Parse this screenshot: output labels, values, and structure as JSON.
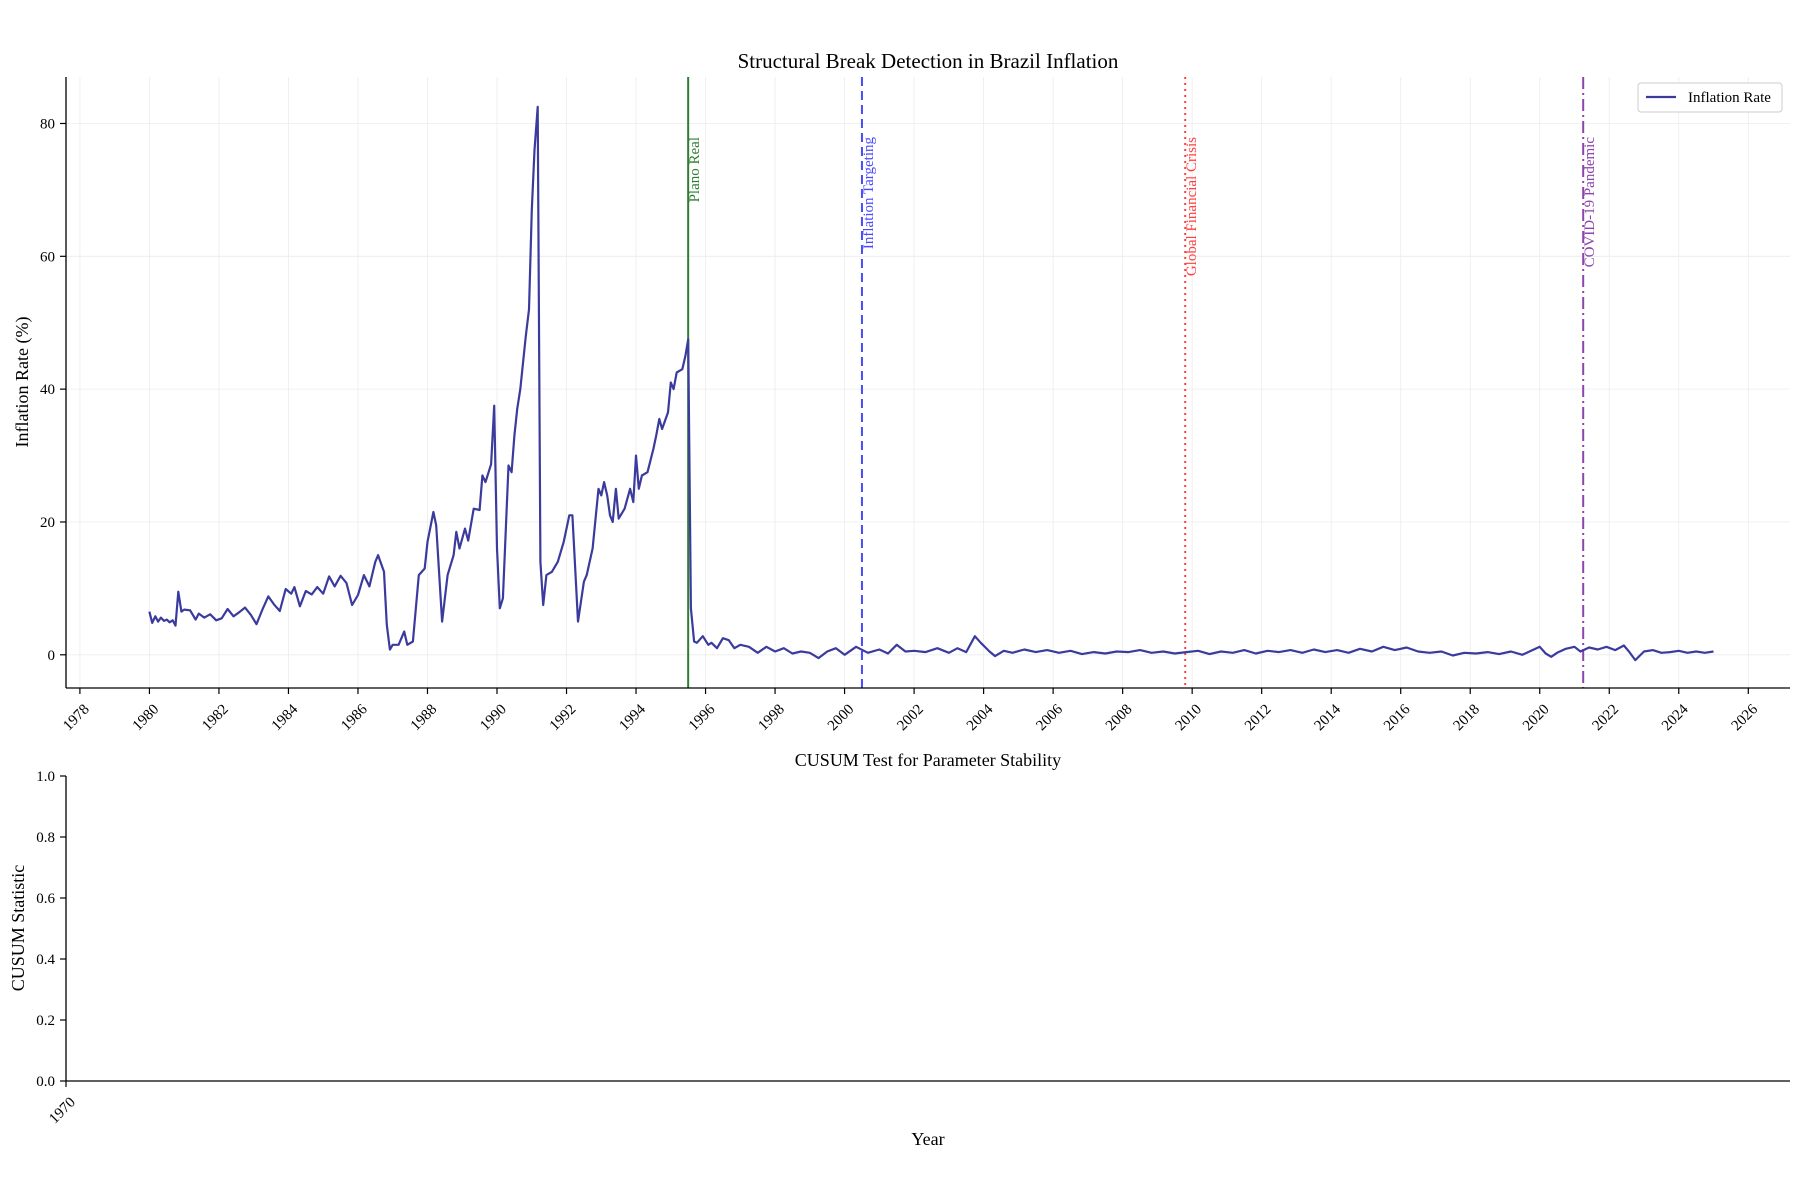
{
  "chart_data": [
    {
      "type": "line",
      "title": "Structural Break Detection in Brazil Inflation",
      "xlabel": "",
      "ylabel": "Inflation Rate (%)",
      "xlim": [
        1977.6,
        2027.2
      ],
      "ylim": [
        -5,
        87
      ],
      "yticks": [
        0,
        20,
        40,
        60,
        80
      ],
      "xticks": [
        1978,
        1980,
        1982,
        1984,
        1986,
        1988,
        1990,
        1992,
        1994,
        1996,
        1998,
        2000,
        2002,
        2004,
        2006,
        2008,
        2010,
        2012,
        2014,
        2016,
        2018,
        2020,
        2022,
        2024,
        2026
      ],
      "grid": true,
      "legend": "top-right",
      "series": [
        {
          "name": "Inflation Rate",
          "color": "#3b3b9e",
          "points": [
            [
              1980.0,
              6.5
            ],
            [
              1980.08,
              4.8
            ],
            [
              1980.17,
              5.8
            ],
            [
              1980.25,
              5.0
            ],
            [
              1980.33,
              5.6
            ],
            [
              1980.42,
              5.1
            ],
            [
              1980.5,
              5.3
            ],
            [
              1980.58,
              4.9
            ],
            [
              1980.67,
              5.2
            ],
            [
              1980.75,
              4.4
            ],
            [
              1980.83,
              9.5
            ],
            [
              1980.92,
              6.5
            ],
            [
              1981.0,
              6.8
            ],
            [
              1981.17,
              6.7
            ],
            [
              1981.33,
              5.3
            ],
            [
              1981.42,
              6.2
            ],
            [
              1981.58,
              5.6
            ],
            [
              1981.75,
              6.1
            ],
            [
              1981.92,
              5.2
            ],
            [
              1982.08,
              5.5
            ],
            [
              1982.25,
              6.9
            ],
            [
              1982.42,
              5.8
            ],
            [
              1982.58,
              6.4
            ],
            [
              1982.75,
              7.1
            ],
            [
              1982.92,
              6.0
            ],
            [
              1983.08,
              4.6
            ],
            [
              1983.25,
              6.8
            ],
            [
              1983.42,
              8.8
            ],
            [
              1983.58,
              7.6
            ],
            [
              1983.75,
              6.6
            ],
            [
              1983.92,
              9.9
            ],
            [
              1984.08,
              9.2
            ],
            [
              1984.17,
              10.2
            ],
            [
              1984.33,
              7.3
            ],
            [
              1984.5,
              9.6
            ],
            [
              1984.67,
              9.1
            ],
            [
              1984.83,
              10.2
            ],
            [
              1985.0,
              9.2
            ],
            [
              1985.17,
              11.8
            ],
            [
              1985.33,
              10.3
            ],
            [
              1985.5,
              11.9
            ],
            [
              1985.67,
              10.8
            ],
            [
              1985.83,
              7.5
            ],
            [
              1986.0,
              9.0
            ],
            [
              1986.17,
              12.0
            ],
            [
              1986.33,
              10.3
            ],
            [
              1986.5,
              14.0
            ],
            [
              1986.58,
              15.0
            ],
            [
              1986.75,
              12.5
            ],
            [
              1986.83,
              4.5
            ],
            [
              1986.92,
              0.8
            ],
            [
              1987.0,
              1.5
            ],
            [
              1987.17,
              1.5
            ],
            [
              1987.33,
              3.5
            ],
            [
              1987.42,
              1.5
            ],
            [
              1987.58,
              2.0
            ],
            [
              1987.75,
              12.0
            ],
            [
              1987.92,
              13.0
            ],
            [
              1988.0,
              17.0
            ],
            [
              1988.17,
              21.5
            ],
            [
              1988.25,
              19.5
            ],
            [
              1988.42,
              5.0
            ],
            [
              1988.58,
              12.0
            ],
            [
              1988.75,
              15.0
            ],
            [
              1988.83,
              18.5
            ],
            [
              1988.92,
              16.0
            ],
            [
              1989.08,
              19.0
            ],
            [
              1989.17,
              17.2
            ],
            [
              1989.33,
              22.0
            ],
            [
              1989.5,
              21.8
            ],
            [
              1989.58,
              27.0
            ],
            [
              1989.67,
              26.0
            ],
            [
              1989.83,
              28.7
            ],
            [
              1989.92,
              37.5
            ],
            [
              1990.0,
              16.0
            ],
            [
              1990.08,
              7.0
            ],
            [
              1990.17,
              8.5
            ],
            [
              1990.33,
              28.5
            ],
            [
              1990.42,
              27.5
            ],
            [
              1990.5,
              33.0
            ],
            [
              1990.58,
              37.0
            ],
            [
              1990.67,
              40.0
            ],
            [
              1990.83,
              48.0
            ],
            [
              1990.92,
              52.0
            ],
            [
              1991.0,
              67.0
            ],
            [
              1991.08,
              76.0
            ],
            [
              1991.17,
              82.5
            ],
            [
              1991.25,
              14.0
            ],
            [
              1991.33,
              7.5
            ],
            [
              1991.42,
              12.0
            ],
            [
              1991.58,
              12.5
            ],
            [
              1991.75,
              14.0
            ],
            [
              1991.92,
              17.0
            ],
            [
              1992.08,
              21.0
            ],
            [
              1992.17,
              21.0
            ],
            [
              1992.33,
              5.0
            ],
            [
              1992.5,
              11.0
            ],
            [
              1992.58,
              12.0
            ],
            [
              1992.75,
              16.0
            ],
            [
              1992.92,
              25.0
            ],
            [
              1993.0,
              24.0
            ],
            [
              1993.08,
              26.0
            ],
            [
              1993.17,
              24.0
            ],
            [
              1993.25,
              21.0
            ],
            [
              1993.33,
              20.0
            ],
            [
              1993.42,
              25.0
            ],
            [
              1993.5,
              20.5
            ],
            [
              1993.67,
              22.0
            ],
            [
              1993.83,
              25.0
            ],
            [
              1993.92,
              23.0
            ],
            [
              1994.0,
              30.0
            ],
            [
              1994.08,
              25.0
            ],
            [
              1994.17,
              27.0
            ],
            [
              1994.33,
              27.5
            ],
            [
              1994.5,
              31.0
            ],
            [
              1994.58,
              33.0
            ],
            [
              1994.67,
              35.5
            ],
            [
              1994.75,
              34.0
            ],
            [
              1994.92,
              36.5
            ],
            [
              1995.0,
              41.0
            ],
            [
              1995.08,
              40.0
            ],
            [
              1995.17,
              42.5
            ],
            [
              1995.33,
              43.0
            ],
            [
              1995.42,
              45.0
            ],
            [
              1995.5,
              47.5
            ],
            [
              1995.58,
              7.0
            ],
            [
              1995.67,
              2.0
            ],
            [
              1995.75,
              1.8
            ],
            [
              1995.92,
              2.8
            ],
            [
              1996.08,
              1.5
            ],
            [
              1996.17,
              1.8
            ],
            [
              1996.33,
              1.0
            ],
            [
              1996.5,
              2.5
            ],
            [
              1996.67,
              2.2
            ],
            [
              1996.83,
              1.0
            ],
            [
              1997.0,
              1.5
            ],
            [
              1997.25,
              1.2
            ],
            [
              1997.5,
              0.3
            ],
            [
              1997.75,
              1.2
            ],
            [
              1998.0,
              0.5
            ],
            [
              1998.25,
              1.0
            ],
            [
              1998.5,
              0.2
            ],
            [
              1998.75,
              0.5
            ],
            [
              1999.0,
              0.3
            ],
            [
              1999.25,
              -0.5
            ],
            [
              1999.5,
              0.5
            ],
            [
              1999.75,
              1.0
            ],
            [
              2000.0,
              0.0
            ],
            [
              2000.33,
              1.2
            ],
            [
              2000.67,
              0.3
            ],
            [
              2001.0,
              0.8
            ],
            [
              2001.25,
              0.2
            ],
            [
              2001.5,
              1.5
            ],
            [
              2001.75,
              0.5
            ],
            [
              2002.0,
              0.6
            ],
            [
              2002.33,
              0.4
            ],
            [
              2002.67,
              1.0
            ],
            [
              2003.0,
              0.3
            ],
            [
              2003.25,
              1.0
            ],
            [
              2003.5,
              0.4
            ],
            [
              2003.75,
              2.8
            ],
            [
              2003.92,
              1.8
            ],
            [
              2004.17,
              0.5
            ],
            [
              2004.33,
              -0.2
            ],
            [
              2004.58,
              0.6
            ],
            [
              2004.83,
              0.3
            ],
            [
              2005.17,
              0.8
            ],
            [
              2005.5,
              0.4
            ],
            [
              2005.83,
              0.7
            ],
            [
              2006.17,
              0.3
            ],
            [
              2006.5,
              0.6
            ],
            [
              2006.83,
              0.1
            ],
            [
              2007.17,
              0.4
            ],
            [
              2007.5,
              0.2
            ],
            [
              2007.83,
              0.5
            ],
            [
              2008.17,
              0.4
            ],
            [
              2008.5,
              0.7
            ],
            [
              2008.83,
              0.3
            ],
            [
              2009.17,
              0.5
            ],
            [
              2009.5,
              0.2
            ],
            [
              2009.83,
              0.4
            ],
            [
              2010.17,
              0.6
            ],
            [
              2010.5,
              0.1
            ],
            [
              2010.83,
              0.5
            ],
            [
              2011.17,
              0.3
            ],
            [
              2011.5,
              0.7
            ],
            [
              2011.83,
              0.2
            ],
            [
              2012.17,
              0.6
            ],
            [
              2012.5,
              0.4
            ],
            [
              2012.83,
              0.7
            ],
            [
              2013.17,
              0.3
            ],
            [
              2013.5,
              0.8
            ],
            [
              2013.83,
              0.4
            ],
            [
              2014.17,
              0.7
            ],
            [
              2014.5,
              0.3
            ],
            [
              2014.83,
              0.9
            ],
            [
              2015.17,
              0.5
            ],
            [
              2015.5,
              1.2
            ],
            [
              2015.83,
              0.7
            ],
            [
              2016.17,
              1.1
            ],
            [
              2016.5,
              0.5
            ],
            [
              2016.83,
              0.3
            ],
            [
              2017.17,
              0.5
            ],
            [
              2017.5,
              -0.1
            ],
            [
              2017.83,
              0.3
            ],
            [
              2018.17,
              0.2
            ],
            [
              2018.5,
              0.4
            ],
            [
              2018.83,
              0.1
            ],
            [
              2019.17,
              0.5
            ],
            [
              2019.5,
              0.0
            ],
            [
              2019.83,
              0.8
            ],
            [
              2020.0,
              1.2
            ],
            [
              2020.17,
              0.2
            ],
            [
              2020.33,
              -0.3
            ],
            [
              2020.5,
              0.3
            ],
            [
              2020.75,
              0.9
            ],
            [
              2021.0,
              1.2
            ],
            [
              2021.17,
              0.5
            ],
            [
              2021.42,
              1.1
            ],
            [
              2021.67,
              0.8
            ],
            [
              2021.92,
              1.2
            ],
            [
              2022.17,
              0.7
            ],
            [
              2022.42,
              1.4
            ],
            [
              2022.58,
              0.4
            ],
            [
              2022.75,
              -0.8
            ],
            [
              2023.0,
              0.5
            ],
            [
              2023.25,
              0.7
            ],
            [
              2023.5,
              0.3
            ],
            [
              2023.75,
              0.4
            ],
            [
              2024.0,
              0.6
            ],
            [
              2024.25,
              0.3
            ],
            [
              2024.5,
              0.5
            ],
            [
              2024.75,
              0.3
            ],
            [
              2025.0,
              0.5
            ]
          ]
        }
      ],
      "annotations": [
        {
          "label": "Plano Real",
          "x": 1995.5,
          "color": "#2e7d32",
          "style": "solid"
        },
        {
          "label": "Inflation Targeting",
          "x": 2000.5,
          "color": "#4a4aff",
          "style": "dashed"
        },
        {
          "label": "Global Financial Crisis",
          "x": 2009.8,
          "color": "#ff4040",
          "style": "dotted"
        },
        {
          "label": "COVID-19 Pandemic",
          "x": 2021.25,
          "color": "#8e44ad",
          "style": "dashdot"
        }
      ]
    },
    {
      "type": "line",
      "title": "CUSUM Test for Parameter Stability",
      "xlabel": "Year",
      "ylabel": "CUSUM Statistic",
      "xlim": [
        1970,
        2020
      ],
      "ylim": [
        0,
        1
      ],
      "yticks": [
        0.0,
        0.2,
        0.4,
        0.6,
        0.8,
        1.0
      ],
      "xticks": [
        1970
      ],
      "series": []
    }
  ]
}
